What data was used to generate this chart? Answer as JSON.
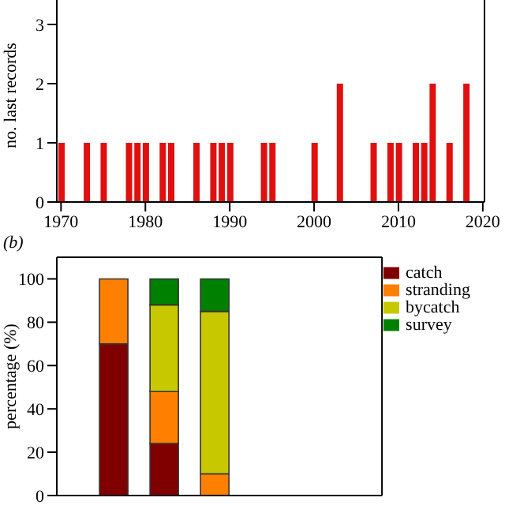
{
  "chart_data": [
    {
      "type": "bar",
      "ylabel": "no. last records",
      "x": [
        1970,
        1973,
        1975,
        1978,
        1979,
        1980,
        1982,
        1983,
        1986,
        1988,
        1989,
        1990,
        1994,
        1995,
        2000,
        2003,
        2007,
        2009,
        2010,
        2012,
        2013,
        2014,
        2016,
        2018
      ],
      "values": [
        1,
        1,
        1,
        1,
        1,
        1,
        1,
        1,
        1,
        1,
        1,
        1,
        1,
        1,
        1,
        2,
        1,
        1,
        1,
        1,
        1,
        2,
        1,
        2
      ],
      "color": "#e01010",
      "xlim": [
        1969.5,
        2020.2
      ],
      "xticks": [
        1970,
        1980,
        1990,
        2000,
        2010,
        2020
      ],
      "ylim": [
        0,
        3.6
      ],
      "yticks": [
        0,
        1,
        2,
        3
      ],
      "grid": false,
      "legend": false
    },
    {
      "type": "bar",
      "title": "(b)",
      "ylabel": "percentage (%)",
      "categories": [
        null,
        null,
        null
      ],
      "stacked": true,
      "ylim": [
        0,
        110
      ],
      "yticks": [
        0,
        20,
        40,
        60,
        80,
        100
      ],
      "grid": false,
      "legend": "top right",
      "series": [
        {
          "name": "catch",
          "color": "#800000",
          "values": [
            70,
            24,
            0
          ]
        },
        {
          "name": "stranding",
          "color": "#ff8000",
          "values": [
            30,
            24,
            10
          ]
        },
        {
          "name": "bycatch",
          "color": "#c8c800",
          "values": [
            0,
            40,
            75
          ]
        },
        {
          "name": "survey",
          "color": "#008000",
          "values": [
            0,
            12,
            15
          ]
        }
      ]
    }
  ]
}
